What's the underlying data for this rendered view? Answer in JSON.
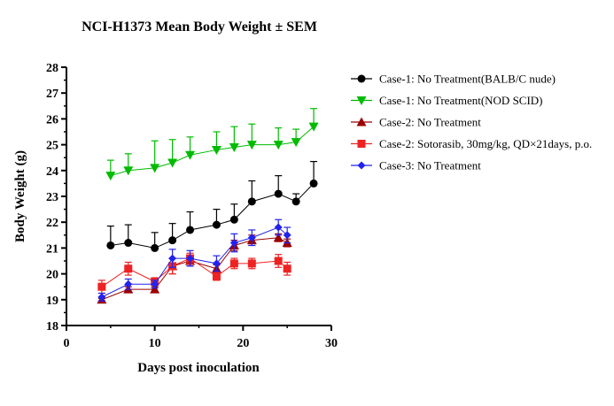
{
  "chart_data": {
    "type": "line",
    "title": "NCI-H1373 Mean Body Weight ± SEM",
    "xlabel": "Days post inoculation",
    "ylabel": "Body Weight (g)",
    "xlim": [
      0,
      30
    ],
    "ylim": [
      18,
      28
    ],
    "x_ticks": [
      "0",
      "10",
      "20",
      "30"
    ],
    "y_ticks": [
      "18",
      "19",
      "20",
      "21",
      "22",
      "23",
      "24",
      "25",
      "26",
      "27",
      "28"
    ],
    "grid": false,
    "legend_position": "right",
    "series": [
      {
        "name": "Case-1: No Treatment(BALB/C nude)",
        "color": "#000000",
        "marker": "circle",
        "x": [
          5,
          7,
          10,
          12,
          14,
          17,
          19,
          21,
          24,
          26,
          28
        ],
        "y": [
          21.1,
          21.2,
          21.0,
          21.3,
          21.7,
          21.9,
          22.1,
          22.8,
          23.1,
          22.8,
          23.5
        ],
        "err": [
          0.75,
          0.7,
          0.6,
          0.65,
          0.7,
          0.6,
          0.6,
          0.8,
          0.7,
          0.3,
          0.85
        ],
        "err_dir": "up"
      },
      {
        "name": "Case-1: No Treatment(NOD SCID)",
        "color": "#00bb00",
        "marker": "triangle-down",
        "x": [
          5,
          7,
          10,
          12,
          14,
          17,
          19,
          21,
          24,
          26,
          28
        ],
        "y": [
          23.8,
          24.0,
          24.1,
          24.3,
          24.6,
          24.8,
          24.9,
          25.0,
          25.0,
          25.1,
          25.7
        ],
        "err": [
          0.6,
          0.65,
          1.05,
          0.9,
          0.7,
          0.7,
          0.8,
          0.8,
          0.65,
          0.5,
          0.7
        ],
        "err_dir": "up"
      },
      {
        "name": "Case-2: No Treatment",
        "color": "#990000",
        "marker": "triangle-up",
        "x": [
          4,
          7,
          10,
          12,
          14,
          17,
          19,
          21,
          24,
          25
        ],
        "y": [
          19.0,
          19.4,
          19.4,
          20.3,
          20.5,
          20.2,
          21.1,
          21.3,
          21.4,
          21.2
        ],
        "err": [
          0.05,
          0.1,
          0.1,
          0.3,
          0.2,
          0.15,
          0.2,
          0.2,
          0.15,
          0.15
        ],
        "err_dir": "both"
      },
      {
        "name": "Case-2: Sotorasib, 30mg/kg, QD×21days, p.o.",
        "color": "#ee2222",
        "marker": "square",
        "x": [
          4,
          7,
          10,
          12,
          14,
          17,
          19,
          21,
          24,
          25
        ],
        "y": [
          19.5,
          20.2,
          19.7,
          20.3,
          20.6,
          19.9,
          20.4,
          20.4,
          20.5,
          20.2
        ],
        "err": [
          0.25,
          0.25,
          0.15,
          0.3,
          0.2,
          0.15,
          0.2,
          0.2,
          0.25,
          0.25
        ],
        "err_dir": "both"
      },
      {
        "name": "Case-3: No Treatment",
        "color": "#2222ee",
        "marker": "diamond",
        "x": [
          4,
          7,
          10,
          12,
          14,
          17,
          19,
          21,
          24,
          25
        ],
        "y": [
          19.1,
          19.6,
          19.6,
          20.6,
          20.6,
          20.4,
          21.2,
          21.4,
          21.8,
          21.5
        ],
        "err": [
          0.15,
          0.2,
          0.15,
          0.35,
          0.3,
          0.3,
          0.35,
          0.3,
          0.3,
          0.3
        ],
        "err_dir": "both"
      }
    ]
  }
}
